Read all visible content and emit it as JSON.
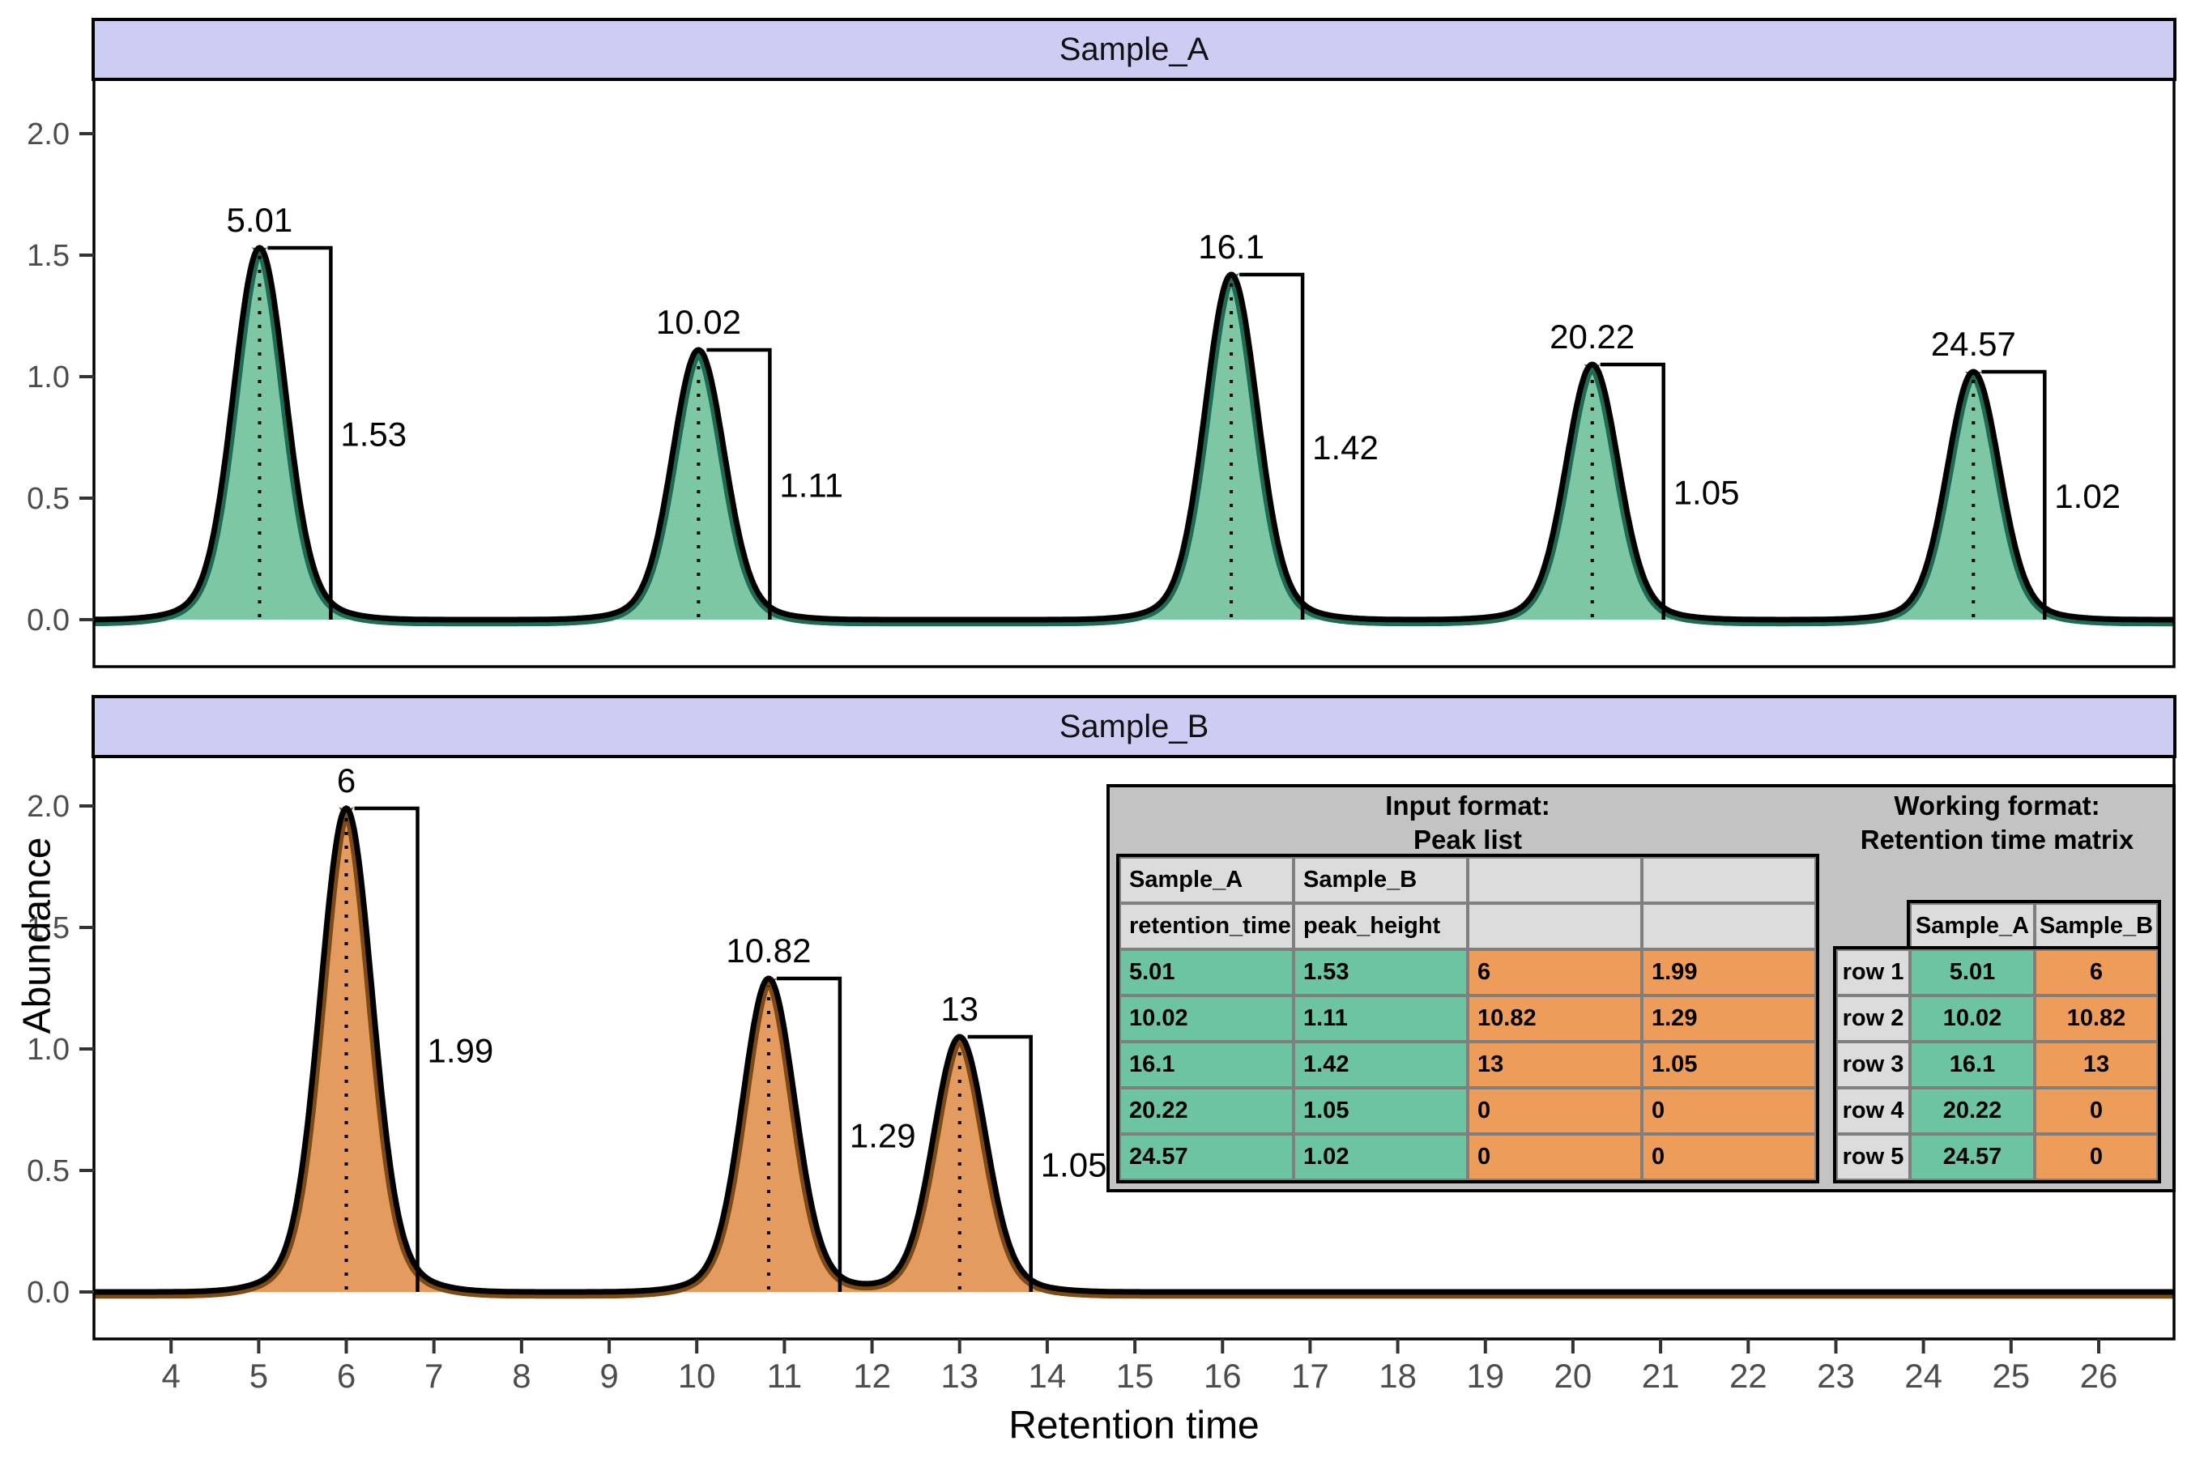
{
  "chart_data": {
    "type": "area",
    "title": "",
    "xlabel": "Retention time",
    "ylabel": "Abundance",
    "x_ticks": [
      4,
      5,
      6,
      7,
      8,
      9,
      10,
      11,
      12,
      13,
      14,
      15,
      16,
      17,
      18,
      19,
      20,
      21,
      22,
      23,
      24,
      25,
      26
    ],
    "y_ticks": [
      {
        "v": 0.0,
        "label": "0.0"
      },
      {
        "v": 0.5,
        "label": "0.5"
      },
      {
        "v": 1.0,
        "label": "1.0"
      },
      {
        "v": 1.5,
        "label": "1.5"
      },
      {
        "v": 2.0,
        "label": "2.0"
      }
    ],
    "x_range": [
      3.12,
      26.86
    ],
    "y_range": [
      -0.19,
      2.22
    ],
    "grid": "off",
    "panels": [
      {
        "title": "Sample_A",
        "color_key": "green",
        "peaks": [
          {
            "rt": 5.01,
            "height": 1.53,
            "rt_label": "5.01",
            "height_label": "1.53"
          },
          {
            "rt": 10.02,
            "height": 1.11,
            "rt_label": "10.02",
            "height_label": "1.11"
          },
          {
            "rt": 16.1,
            "height": 1.42,
            "rt_label": "16.1",
            "height_label": "1.42"
          },
          {
            "rt": 20.22,
            "height": 1.05,
            "rt_label": "20.22",
            "height_label": "1.05"
          },
          {
            "rt": 24.57,
            "height": 1.02,
            "rt_label": "24.57",
            "height_label": "1.02"
          }
        ]
      },
      {
        "title": "Sample_B",
        "color_key": "orange",
        "peaks": [
          {
            "rt": 6,
            "height": 1.99,
            "rt_label": "6",
            "height_label": "1.99"
          },
          {
            "rt": 10.82,
            "height": 1.29,
            "rt_label": "10.82",
            "height_label": "1.29"
          },
          {
            "rt": 13,
            "height": 1.05,
            "rt_label": "13",
            "height_label": "1.05"
          }
        ]
      }
    ]
  },
  "colors": {
    "strip_bg": "#CDCCF2",
    "panel_border": "#000000",
    "axis_text": "#4D4D4D",
    "tick_mark": "#333333",
    "green_fill": "#7EC7A4",
    "green_edge": "#1E6B55",
    "orange_fill": "#E49B60",
    "orange_edge": "#7E4A14",
    "box_grey": "#C3C3C3",
    "hdr_grey": "#DCDCDC",
    "table_green": "#6CC5A0",
    "table_orange": "#EE9C5A",
    "cell_border": "#7F7F7F"
  },
  "inset": {
    "left_table": {
      "title_line1": "Input format:",
      "title_line2": "Peak list",
      "header_rows": [
        [
          "Sample_A",
          "Sample_B",
          "",
          ""
        ],
        [
          "retention_time",
          "peak_height",
          "",
          ""
        ]
      ],
      "col_fill": [
        "green",
        "green",
        "orange",
        "orange"
      ],
      "rows": [
        [
          "5.01",
          "1.53",
          "6",
          "1.99"
        ],
        [
          "10.02",
          "1.11",
          "10.82",
          "1.29"
        ],
        [
          "16.1",
          "1.42",
          "13",
          "1.05"
        ],
        [
          "20.22",
          "1.05",
          "0",
          "0"
        ],
        [
          "24.57",
          "1.02",
          "0",
          "0"
        ]
      ]
    },
    "right_table": {
      "title_line1": "Working format:",
      "title_line2": "Retention time matrix",
      "col_headers": [
        "Sample_A",
        "Sample_B"
      ],
      "col_fill": [
        "green",
        "orange"
      ],
      "row_labels": [
        "row 1",
        "row 2",
        "row 3",
        "row 4",
        "row 5"
      ],
      "rows": [
        [
          "5.01",
          "6"
        ],
        [
          "10.02",
          "10.82"
        ],
        [
          "16.1",
          "13"
        ],
        [
          "20.22",
          "0"
        ],
        [
          "24.57",
          "0"
        ]
      ]
    }
  }
}
